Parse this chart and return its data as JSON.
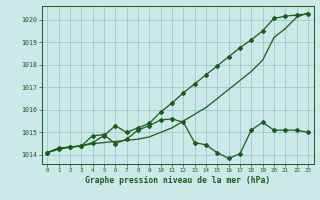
{
  "background_color": "#cce8e8",
  "grid_color": "#99cccc",
  "line_color": "#1a5c1a",
  "text_color": "#1a5c1a",
  "xlabel": "Graphe pression niveau de la mer (hPa)",
  "xlim": [
    -0.5,
    23.5
  ],
  "ylim": [
    1013.6,
    1020.6
  ],
  "yticks": [
    1014,
    1015,
    1016,
    1017,
    1018,
    1019,
    1020
  ],
  "xticks": [
    0,
    1,
    2,
    3,
    4,
    5,
    6,
    7,
    8,
    9,
    10,
    11,
    12,
    13,
    14,
    15,
    16,
    17,
    18,
    19,
    20,
    21,
    22,
    23
  ],
  "series1_x": [
    0,
    1,
    2,
    3,
    4,
    5,
    6,
    7,
    8,
    9,
    10,
    11,
    12,
    13,
    14,
    15,
    16,
    17,
    18,
    19,
    20,
    21,
    22,
    23
  ],
  "series1_y": [
    1014.1,
    1014.3,
    1014.35,
    1014.4,
    1014.5,
    1014.55,
    1014.6,
    1014.65,
    1014.7,
    1014.8,
    1015.0,
    1015.2,
    1015.5,
    1015.8,
    1016.1,
    1016.5,
    1016.9,
    1017.3,
    1017.7,
    1018.2,
    1019.2,
    1019.6,
    1020.1,
    1020.3
  ],
  "series2_x": [
    0,
    1,
    2,
    3,
    4,
    5,
    6,
    7,
    8,
    9,
    10,
    11,
    12,
    13,
    14,
    15,
    16,
    17,
    18,
    19,
    20,
    21,
    22,
    23
  ],
  "series2_y": [
    1014.1,
    1014.25,
    1014.35,
    1014.4,
    1014.55,
    1014.85,
    1015.3,
    1015.0,
    1015.2,
    1015.4,
    1015.9,
    1016.3,
    1016.75,
    1017.15,
    1017.55,
    1017.95,
    1018.35,
    1018.75,
    1019.1,
    1019.5,
    1020.05,
    1020.15,
    1020.2,
    1020.25
  ],
  "series3_x": [
    0,
    1,
    2,
    3,
    4,
    5,
    6,
    7,
    8,
    9,
    10,
    11,
    12,
    13,
    14,
    15,
    16,
    17,
    18,
    19,
    20,
    21,
    22,
    23
  ],
  "series3_y": [
    1014.1,
    1014.3,
    1014.35,
    1014.4,
    1014.85,
    1014.9,
    1014.5,
    1014.7,
    1015.1,
    1015.3,
    1015.55,
    1015.6,
    1015.45,
    1014.55,
    1014.45,
    1014.1,
    1013.85,
    1014.05,
    1015.1,
    1015.45,
    1015.1,
    1015.1,
    1015.1,
    1015.0
  ]
}
